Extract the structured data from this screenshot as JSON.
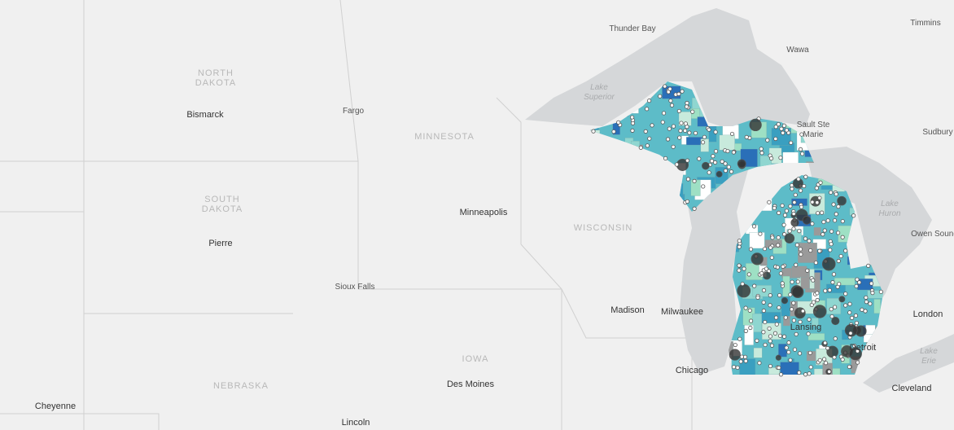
{
  "labels": [
    {
      "lines": [
        "NORTH",
        "DAKOTA"
      ],
      "kind": "state"
    },
    {
      "lines": [
        "SOUTH",
        "DAKOTA"
      ],
      "kind": "state"
    },
    {
      "lines": [
        "MINNESOTA"
      ],
      "kind": "state"
    },
    {
      "lines": [
        "WISCONSIN"
      ],
      "kind": "state"
    },
    {
      "lines": [
        "IOWA"
      ],
      "kind": "state"
    },
    {
      "lines": [
        "NEBRASKA"
      ],
      "kind": "state"
    },
    {
      "lines": [
        "Lake",
        "Superior"
      ],
      "kind": "water"
    },
    {
      "lines": [
        "Lake",
        "Huron"
      ],
      "kind": "water"
    },
    {
      "lines": [
        "Lake",
        "Erie"
      ],
      "kind": "water"
    },
    {
      "lines": [
        "Bismarck"
      ],
      "kind": "city"
    },
    {
      "lines": [
        "Fargo"
      ],
      "kind": "minor"
    },
    {
      "lines": [
        "Pierre"
      ],
      "kind": "city"
    },
    {
      "lines": [
        "Sioux Falls"
      ],
      "kind": "minor"
    },
    {
      "lines": [
        "Minneapolis"
      ],
      "kind": "city"
    },
    {
      "lines": [
        "Madison"
      ],
      "kind": "city"
    },
    {
      "lines": [
        "Milwaukee"
      ],
      "kind": "city"
    },
    {
      "lines": [
        "Chicago"
      ],
      "kind": "city"
    },
    {
      "lines": [
        "Des Moines"
      ],
      "kind": "city"
    },
    {
      "lines": [
        "Lincoln"
      ],
      "kind": "city"
    },
    {
      "lines": [
        "Cheyenne"
      ],
      "kind": "city"
    },
    {
      "lines": [
        "Thunder Bay"
      ],
      "kind": "minor"
    },
    {
      "lines": [
        "Timmins"
      ],
      "kind": "minor"
    },
    {
      "lines": [
        "Wawa"
      ],
      "kind": "minor"
    },
    {
      "lines": [
        "Sault Ste",
        "Marie"
      ],
      "kind": "minor"
    },
    {
      "lines": [
        "Sudbury"
      ],
      "kind": "minor"
    },
    {
      "lines": [
        "Owen Sound"
      ],
      "kind": "minor"
    },
    {
      "lines": [
        "Lansing"
      ],
      "kind": "city"
    },
    {
      "lines": [
        "Detroit"
      ],
      "kind": "city"
    },
    {
      "lines": [
        "London"
      ],
      "kind": "city"
    },
    {
      "lines": [
        "Cleveland"
      ],
      "kind": "city"
    }
  ]
}
